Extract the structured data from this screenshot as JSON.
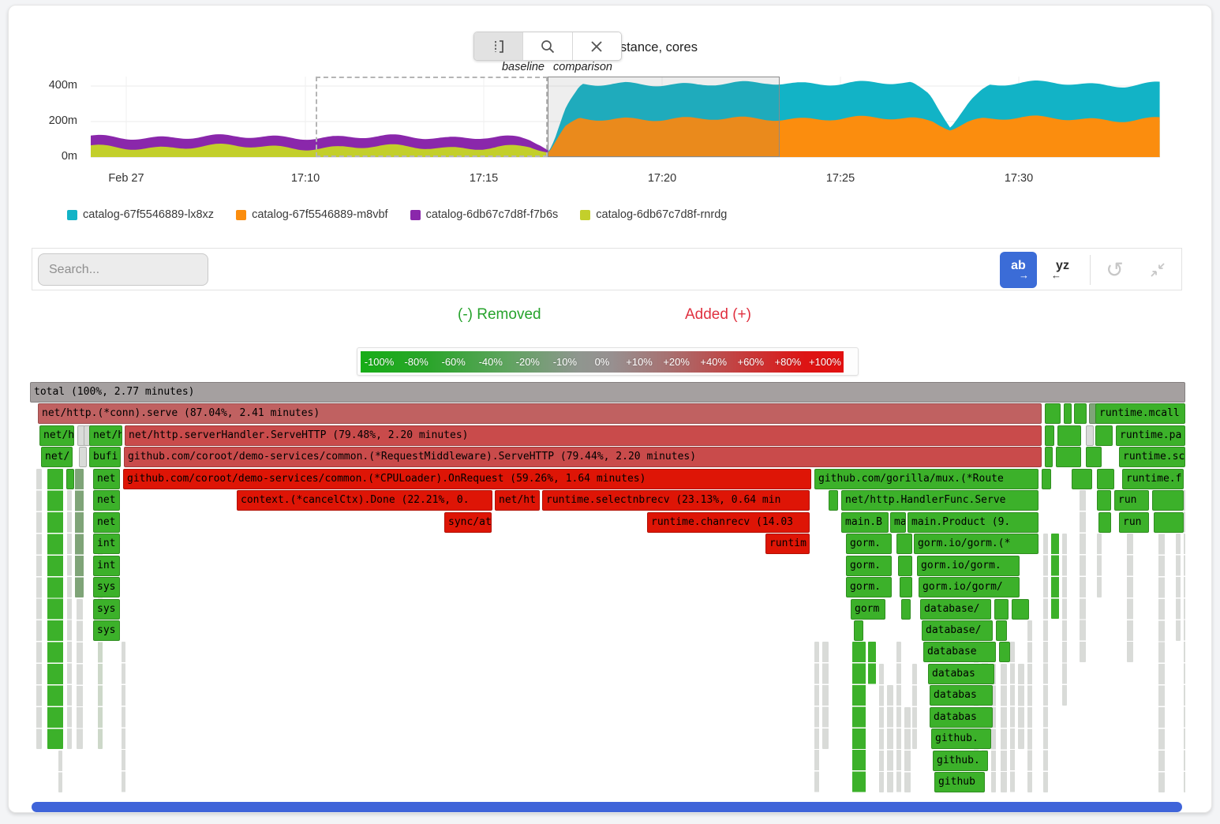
{
  "chart": {
    "title": "CPU usage by instance, cores",
    "baseline_label": "baseline",
    "comparison_label": "comparison",
    "y_ticks": [
      "400m",
      "200m",
      "0m"
    ],
    "x_ticks": [
      "Feb 27",
      "17:10",
      "17:15",
      "17:20",
      "17:25",
      "17:30"
    ],
    "legend": [
      {
        "name": "catalog-67f5546889-lx8xz",
        "color": "#12b3c6"
      },
      {
        "name": "catalog-67f5546889-m8vbf",
        "color": "#fb8d0e"
      },
      {
        "name": "catalog-6db67c7d8f-f7b6s",
        "color": "#8a27ab"
      },
      {
        "name": "catalog-6db67c7d8f-rnrdg",
        "color": "#c3cf2b"
      }
    ]
  },
  "chart_data": {
    "type": "area",
    "stacked": true,
    "title": "CPU usage by instance, cores",
    "ylabel": "cores",
    "ylim_millicores": [
      0,
      450
    ],
    "y_tick_values": [
      0,
      200,
      400
    ],
    "x_ticks": [
      "Feb 27",
      "17:10",
      "17:15",
      "17:20",
      "17:25",
      "17:30"
    ],
    "x_axis_minutes_from_1704": {
      "start": 0,
      "end": 30
    },
    "selection": {
      "baseline_minutes": [
        6.3,
        12.8
      ],
      "comparison_minutes": [
        12.8,
        19.3
      ]
    },
    "series": [
      {
        "name": "catalog-6db67c7d8f-rnrdg",
        "color": "#c3cf2b",
        "points": [
          [
            0,
            58
          ],
          [
            2,
            55
          ],
          [
            4,
            60
          ],
          [
            6,
            54
          ],
          [
            8,
            57
          ],
          [
            10,
            52
          ],
          [
            11.5,
            60
          ],
          [
            12.3,
            55
          ],
          [
            12.9,
            20
          ],
          [
            13.2,
            0
          ],
          [
            30,
            0
          ]
        ]
      },
      {
        "name": "catalog-6db67c7d8f-f7b6s",
        "color": "#8a27ab",
        "points": [
          [
            0,
            55
          ],
          [
            2,
            58
          ],
          [
            4,
            52
          ],
          [
            6,
            60
          ],
          [
            8,
            55
          ],
          [
            10,
            57
          ],
          [
            11,
            62
          ],
          [
            12,
            50
          ],
          [
            12.6,
            30
          ],
          [
            13.0,
            0
          ],
          [
            30,
            0
          ]
        ]
      },
      {
        "name": "catalog-67f5546889-m8vbf",
        "color": "#fb8d0e",
        "points": [
          [
            0,
            0
          ],
          [
            12.7,
            0
          ],
          [
            12.9,
            40
          ],
          [
            13.3,
            160
          ],
          [
            13.7,
            215
          ],
          [
            15,
            220
          ],
          [
            17,
            210
          ],
          [
            19,
            220
          ],
          [
            21,
            215
          ],
          [
            23,
            218
          ],
          [
            23.6,
            205
          ],
          [
            24.1,
            165
          ],
          [
            24.6,
            200
          ],
          [
            25,
            215
          ],
          [
            27,
            218
          ],
          [
            29,
            212
          ],
          [
            30,
            215
          ]
        ]
      },
      {
        "name": "catalog-67f5546889-lx8xz",
        "color": "#12b3c6",
        "points": [
          [
            0,
            0
          ],
          [
            12.8,
            0
          ],
          [
            13.0,
            20
          ],
          [
            13.4,
            120
          ],
          [
            13.8,
            195
          ],
          [
            15,
            200
          ],
          [
            17,
            190
          ],
          [
            19,
            205
          ],
          [
            21,
            195
          ],
          [
            23,
            200
          ],
          [
            23.5,
            150
          ],
          [
            24.1,
            15
          ],
          [
            24.7,
            120
          ],
          [
            25.2,
            190
          ],
          [
            27,
            200
          ],
          [
            29,
            195
          ],
          [
            30,
            200
          ]
        ]
      }
    ]
  },
  "search": {
    "placeholder": "Search..."
  },
  "toolbar": {
    "ab_label": "ab",
    "yz_label": "yz"
  },
  "diff": {
    "removed": "(-) Removed",
    "added": "Added (+)",
    "scale": [
      "-100%",
      "-80%",
      "-60%",
      "-40%",
      "-20%",
      "-10%",
      "0%",
      "+10%",
      "+20%",
      "+40%",
      "+60%",
      "+80%",
      "+100%"
    ]
  },
  "flame": {
    "row_height": 27.45,
    "colors": {
      "gray": "#a5a0a0",
      "red1": "#c06161",
      "red2": "#c94b4b",
      "red3": "#de1506",
      "green": "#3cb12a",
      "grayGreen": "#7fa478",
      "pale": "#d9dbd8",
      "paleGreen": "#cdd8c9"
    },
    "frames": [
      [
        0,
        0,
        1464,
        "gray",
        "total (100%, 2.77 minutes)"
      ],
      [
        1,
        10,
        1272,
        "red1",
        "net/http.(*conn).serve (87.04%, 2.41 minutes)"
      ],
      [
        1,
        1286,
        20,
        "green",
        ""
      ],
      [
        1,
        1310,
        9,
        "green",
        ""
      ],
      [
        1,
        1323,
        16,
        "green",
        ""
      ],
      [
        1,
        1342,
        5,
        "grayGreen",
        ""
      ],
      [
        1,
        1350,
        114,
        "green",
        "runtime.mcall"
      ],
      [
        2,
        12,
        44,
        "green",
        "net/h"
      ],
      [
        2,
        60,
        5,
        "pale",
        ""
      ],
      [
        2,
        68,
        5,
        "pale",
        ""
      ],
      [
        2,
        75,
        42,
        "green",
        "net/h"
      ],
      [
        2,
        120,
        1162,
        "red2",
        "net/http.serverHandler.ServeHTTP (79.48%, 2.20 minutes)"
      ],
      [
        2,
        1286,
        12,
        "green",
        ""
      ],
      [
        2,
        1302,
        30,
        "green",
        ""
      ],
      [
        2,
        1338,
        8,
        "pale",
        ""
      ],
      [
        2,
        1350,
        22,
        "green",
        ""
      ],
      [
        2,
        1376,
        88,
        "green",
        "runtime.pa"
      ],
      [
        3,
        14,
        40,
        "green",
        "net/"
      ],
      [
        3,
        62,
        5,
        "pale",
        ""
      ],
      [
        3,
        75,
        40,
        "green",
        "bufi"
      ],
      [
        3,
        119,
        1163,
        "red2",
        "github.com/coroot/demo-services/common.(*RequestMiddleware).ServeHTTP (79.44%, 2.20 minutes)"
      ],
      [
        3,
        1286,
        10,
        "green",
        ""
      ],
      [
        3,
        1300,
        32,
        "green",
        ""
      ],
      [
        3,
        1338,
        20,
        "green",
        ""
      ],
      [
        3,
        1380,
        84,
        "green",
        "runtime.sc"
      ],
      [
        4,
        46,
        7,
        "green",
        ""
      ],
      [
        4,
        80,
        34,
        "green",
        "net"
      ],
      [
        4,
        118,
        872,
        "red3",
        "github.com/coroot/demo-services/common.(*CPULoader).OnRequest (59.26%, 1.64 minutes)"
      ],
      [
        4,
        994,
        284,
        "green",
        "github.com/gorilla/mux.(*Route"
      ],
      [
        4,
        1282,
        12,
        "green",
        ""
      ],
      [
        4,
        1320,
        26,
        "green",
        ""
      ],
      [
        4,
        1352,
        22,
        "green",
        ""
      ],
      [
        4,
        1384,
        78,
        "green",
        "runtime.f"
      ],
      [
        5,
        80,
        34,
        "green",
        "net"
      ],
      [
        5,
        262,
        324,
        "red3",
        "context.(*cancelCtx).Done (22.21%, 0."
      ],
      [
        5,
        589,
        57,
        "red3",
        "net/ht"
      ],
      [
        5,
        649,
        339,
        "red3",
        "runtime.selectnbrecv (23.13%, 0.64 min"
      ],
      [
        5,
        1012,
        12,
        "green",
        ""
      ],
      [
        5,
        1028,
        250,
        "green",
        "net/http.HandlerFunc.Serve"
      ],
      [
        5,
        1352,
        18,
        "green",
        ""
      ],
      [
        5,
        1374,
        44,
        "green",
        "run"
      ],
      [
        5,
        1422,
        40,
        "green",
        ""
      ],
      [
        6,
        80,
        34,
        "green",
        "net"
      ],
      [
        6,
        525,
        60,
        "red3",
        "sync/at"
      ],
      [
        6,
        782,
        206,
        "red3",
        "runtime.chanrecv (14.03"
      ],
      [
        6,
        1028,
        60,
        "green",
        "main.B"
      ],
      [
        6,
        1090,
        20,
        "green",
        "mai"
      ],
      [
        6,
        1112,
        166,
        "green",
        "main.Product (9."
      ],
      [
        6,
        1354,
        16,
        "green",
        ""
      ],
      [
        6,
        1380,
        38,
        "green",
        "run"
      ],
      [
        6,
        1424,
        38,
        "green",
        ""
      ],
      [
        7,
        80,
        34,
        "green",
        "int"
      ],
      [
        7,
        932,
        56,
        "red3",
        "runtim"
      ],
      [
        7,
        1034,
        58,
        "green",
        "gorm."
      ],
      [
        7,
        1098,
        20,
        "green",
        ""
      ],
      [
        7,
        1120,
        158,
        "green",
        "gorm.io/gorm.(*"
      ],
      [
        8,
        80,
        34,
        "green",
        "int"
      ],
      [
        8,
        1034,
        58,
        "green",
        "gorm."
      ],
      [
        8,
        1100,
        18,
        "green",
        ""
      ],
      [
        8,
        1124,
        130,
        "green",
        "gorm.io/gorm."
      ],
      [
        9,
        80,
        34,
        "green",
        "sys"
      ],
      [
        9,
        1034,
        58,
        "green",
        "gorm."
      ],
      [
        9,
        1102,
        16,
        "green",
        ""
      ],
      [
        9,
        1126,
        128,
        "green",
        "gorm.io/gorm/"
      ],
      [
        10,
        80,
        34,
        "green",
        "sys"
      ],
      [
        10,
        1040,
        44,
        "green",
        "gorm"
      ],
      [
        10,
        1104,
        12,
        "green",
        ""
      ],
      [
        10,
        1128,
        90,
        "green",
        "database/"
      ],
      [
        10,
        1222,
        18,
        "green",
        ""
      ],
      [
        10,
        1244,
        22,
        "green",
        ""
      ],
      [
        11,
        80,
        34,
        "green",
        "sys"
      ],
      [
        11,
        1044,
        12,
        "green",
        ""
      ],
      [
        11,
        1130,
        90,
        "green",
        "database/"
      ],
      [
        11,
        1224,
        14,
        "green",
        ""
      ],
      [
        12,
        1132,
        92,
        "green",
        "database"
      ],
      [
        12,
        1228,
        14,
        "green",
        ""
      ],
      [
        13,
        1138,
        84,
        "green",
        "databas"
      ],
      [
        14,
        1140,
        80,
        "green",
        "databas"
      ],
      [
        15,
        1140,
        80,
        "green",
        "databas"
      ],
      [
        16,
        1142,
        76,
        "green",
        "github."
      ],
      [
        17,
        1144,
        70,
        "green",
        "github."
      ],
      [
        18,
        1146,
        64,
        "green",
        "github"
      ]
    ],
    "columns": [
      [
        8,
        7,
        4,
        16,
        "pale"
      ],
      [
        22,
        20,
        4,
        16,
        "green"
      ],
      [
        47,
        6,
        5,
        16,
        "pale"
      ],
      [
        57,
        11,
        4,
        9,
        "grayGreen"
      ],
      [
        59,
        8,
        10,
        16,
        "pale"
      ],
      [
        86,
        6,
        4,
        16,
        "paleGreen"
      ],
      [
        36,
        5,
        17,
        18,
        "pale"
      ],
      [
        116,
        5,
        12,
        18,
        "pale"
      ],
      [
        994,
        6,
        12,
        18,
        "pale"
      ],
      [
        1004,
        8,
        12,
        16,
        "pale"
      ],
      [
        1042,
        17,
        12,
        18,
        "green"
      ],
      [
        1062,
        10,
        12,
        13,
        "green"
      ],
      [
        1076,
        6,
        13,
        18,
        "pale"
      ],
      [
        1086,
        8,
        14,
        18,
        "pale"
      ],
      [
        1098,
        6,
        12,
        18,
        "pale"
      ],
      [
        1108,
        8,
        15,
        18,
        "pale"
      ],
      [
        1118,
        6,
        13,
        16,
        "pale"
      ],
      [
        1196,
        6,
        11,
        18,
        "pale"
      ],
      [
        1206,
        8,
        12,
        17,
        "pale"
      ],
      [
        1218,
        6,
        13,
        18,
        "pale"
      ],
      [
        1230,
        8,
        13,
        18,
        "pale"
      ],
      [
        1242,
        6,
        12,
        18,
        "pale"
      ],
      [
        1252,
        8,
        13,
        16,
        "pale"
      ],
      [
        1264,
        6,
        11,
        18,
        "pale"
      ],
      [
        1284,
        6,
        7,
        18,
        "pale"
      ],
      [
        1294,
        10,
        7,
        10,
        "green"
      ],
      [
        1308,
        6,
        7,
        14,
        "pale"
      ],
      [
        1330,
        8,
        5,
        12,
        "pale"
      ],
      [
        1352,
        6,
        7,
        9,
        "pale"
      ],
      [
        1390,
        8,
        7,
        12,
        "pale"
      ],
      [
        1430,
        8,
        6,
        18,
        "pale"
      ],
      [
        1452,
        6,
        7,
        11,
        "pale"
      ],
      [
        1462,
        8,
        5,
        18,
        "pale"
      ]
    ]
  }
}
